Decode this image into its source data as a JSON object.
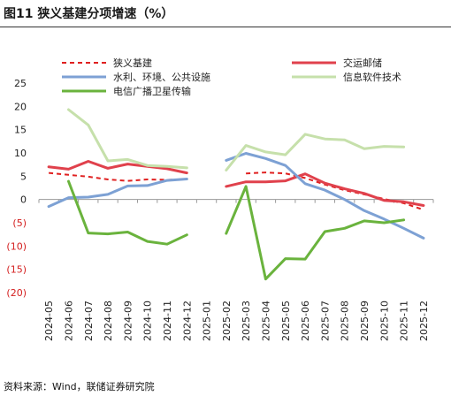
{
  "title": "图11 狭义基建分项增速（%）",
  "source": "资料来源：Wind，联储证券研究院",
  "chart_data": {
    "type": "line",
    "x": [
      "2024-05",
      "2024-06",
      "2024-07",
      "2024-08",
      "2024-09",
      "2024-10",
      "2024-11",
      "2024-12",
      "2025-01",
      "2025-02",
      "2025-03",
      "2025-04",
      "2025-05",
      "2025-06",
      "2025-07",
      "2025-08",
      "2025-09",
      "2025-10",
      "2025-11",
      "2025-12"
    ],
    "y_ticks": [
      25,
      20,
      15,
      10,
      5,
      0,
      -5,
      -10,
      -15,
      -20
    ],
    "y_tick_labels": [
      "25",
      "20",
      "15",
      "10",
      "5",
      "0",
      "(5)",
      "(10)",
      "(15)",
      "(20)"
    ],
    "ylim": [
      -20,
      25
    ],
    "legend_position": "top",
    "series": [
      {
        "name": "狭义基建",
        "color": "#e02020",
        "dashed": true,
        "values": [
          5.7,
          5.3,
          4.9,
          4.3,
          4.0,
          4.3,
          4.2,
          4.4,
          null,
          null,
          5.6,
          5.8,
          5.6,
          4.6,
          3.2,
          2.0,
          1.1,
          0.1,
          -0.8,
          -2.2
        ]
      },
      {
        "name": "交运邮储",
        "color": "#e0414c",
        "dashed": false,
        "values": [
          7.0,
          6.5,
          8.2,
          6.7,
          7.6,
          7.1,
          6.6,
          5.7,
          null,
          2.8,
          3.8,
          3.8,
          4.0,
          5.5,
          3.5,
          2.3,
          1.3,
          -0.2,
          -0.5,
          -1.3
        ]
      },
      {
        "name": "水利、环境、公共设施",
        "color": "#7da1d4",
        "dashed": false,
        "values": [
          -1.5,
          0.4,
          0.5,
          1.1,
          2.9,
          3.0,
          4.1,
          4.4,
          null,
          8.4,
          9.9,
          8.8,
          7.3,
          3.4,
          2.0,
          0.0,
          -2.4,
          -4.2,
          -6.2,
          -8.3
        ]
      },
      {
        "name": "信息软件技术",
        "color": "#c6e0ab",
        "dashed": false,
        "values": [
          null,
          19.3,
          16.0,
          8.3,
          8.6,
          7.3,
          7.1,
          6.8,
          null,
          6.3,
          11.6,
          10.2,
          9.6,
          14.0,
          13.0,
          12.8,
          10.9,
          11.4,
          11.3,
          null
        ]
      },
      {
        "name": "电信广播卫星传输",
        "color": "#6ab33d",
        "dashed": false,
        "values": [
          null,
          3.9,
          -7.2,
          -7.4,
          -7.0,
          -9.0,
          -9.6,
          -7.6,
          null,
          -7.3,
          2.8,
          -17.1,
          -12.7,
          -12.8,
          -6.9,
          -6.2,
          -4.6,
          -5.0,
          -4.4,
          null
        ]
      }
    ]
  }
}
